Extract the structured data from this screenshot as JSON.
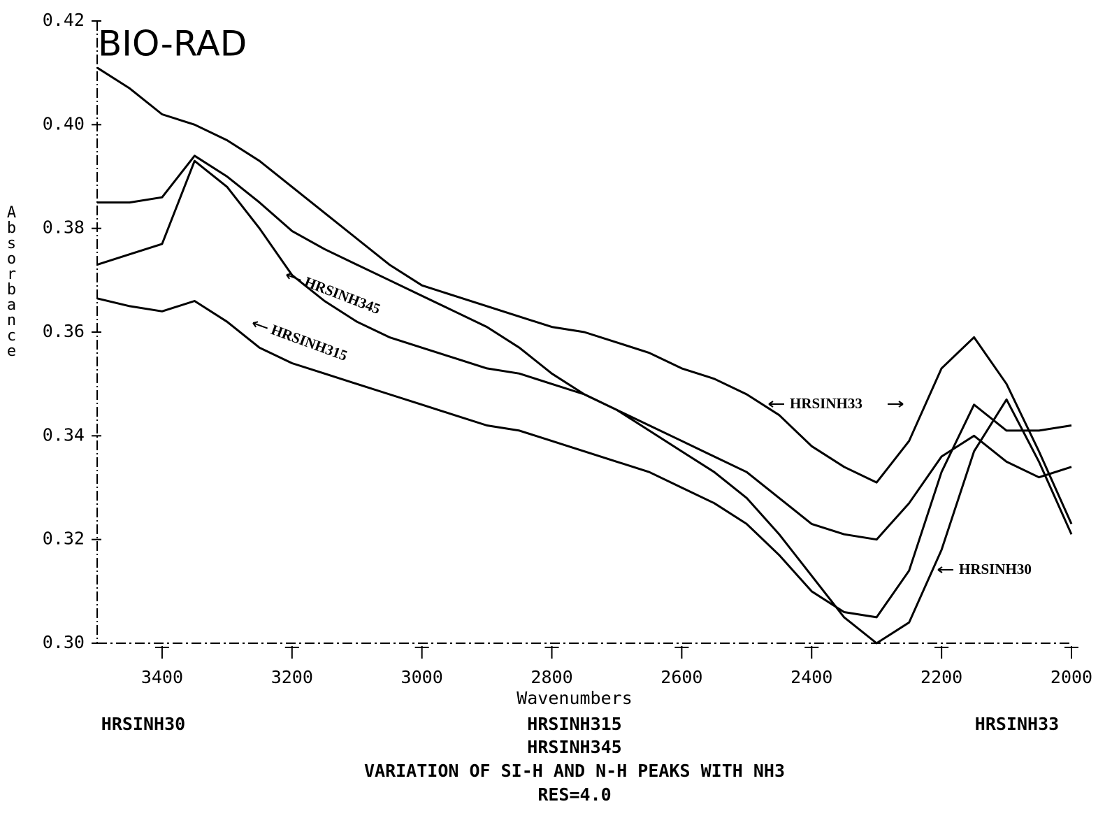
{
  "chart_data": {
    "type": "line",
    "brand": "BIO-RAD",
    "title": "VARIATION OF SI-H AND N-H PEAKS WITH NH3",
    "subtitle": "RES=4.0",
    "xlabel": "Wavenumbers",
    "ylabel": "Absorbance",
    "xlim": [
      3500,
      2000
    ],
    "ylim": [
      0.3,
      0.42
    ],
    "xticks": [
      3400,
      3200,
      3000,
      2800,
      2600,
      2400,
      2200,
      2000
    ],
    "yticks": [
      {
        "value": 0.3,
        "label": "0.30"
      },
      0.32,
      0.34,
      0.36,
      0.38,
      {
        "value": 0.4,
        "label": "0.40"
      },
      0.42
    ],
    "grid": false,
    "x": [
      3500,
      3450,
      3400,
      3350,
      3300,
      3250,
      3200,
      3150,
      3100,
      3050,
      3000,
      2950,
      2900,
      2850,
      2800,
      2750,
      2700,
      2650,
      2600,
      2550,
      2500,
      2450,
      2400,
      2350,
      2300,
      2250,
      2200,
      2150,
      2100,
      2050,
      2000
    ],
    "series": [
      {
        "name": "HRSINH30",
        "color": "#000000",
        "values": [
          0.385,
          0.385,
          0.386,
          0.394,
          0.39,
          0.385,
          0.3795,
          0.376,
          0.373,
          0.37,
          0.367,
          0.364,
          0.361,
          0.357,
          0.352,
          0.348,
          0.345,
          0.341,
          0.337,
          0.333,
          0.328,
          0.321,
          0.313,
          0.305,
          0.3,
          0.304,
          0.318,
          0.337,
          0.347,
          0.335,
          0.321
        ]
      },
      {
        "name": "HRSINH315",
        "color": "#000000",
        "values": [
          0.3665,
          0.365,
          0.364,
          0.366,
          0.362,
          0.357,
          0.354,
          0.352,
          0.35,
          0.348,
          0.346,
          0.344,
          0.342,
          0.341,
          0.339,
          0.337,
          0.335,
          0.333,
          0.33,
          0.327,
          0.323,
          0.317,
          0.31,
          0.306,
          0.305,
          0.314,
          0.333,
          0.346,
          0.341,
          0.341,
          0.342
        ]
      },
      {
        "name": "HRSINH345",
        "color": "#000000",
        "values": [
          0.373,
          0.375,
          0.377,
          0.393,
          0.388,
          0.38,
          0.371,
          0.366,
          0.362,
          0.359,
          0.357,
          0.355,
          0.353,
          0.352,
          0.35,
          0.348,
          0.345,
          0.342,
          0.339,
          0.336,
          0.333,
          0.328,
          0.323,
          0.321,
          0.32,
          0.327,
          0.336,
          0.34,
          0.335,
          0.332,
          0.334
        ]
      },
      {
        "name": "HRSINH33",
        "color": "#000000",
        "values": [
          0.411,
          0.407,
          0.402,
          0.4,
          0.397,
          0.393,
          0.388,
          0.383,
          0.378,
          0.373,
          0.369,
          0.367,
          0.365,
          0.363,
          0.361,
          0.36,
          0.358,
          0.356,
          0.353,
          0.351,
          0.348,
          0.344,
          0.338,
          0.334,
          0.331,
          0.339,
          0.353,
          0.359,
          0.35,
          0.337,
          0.323
        ]
      }
    ]
  }
}
